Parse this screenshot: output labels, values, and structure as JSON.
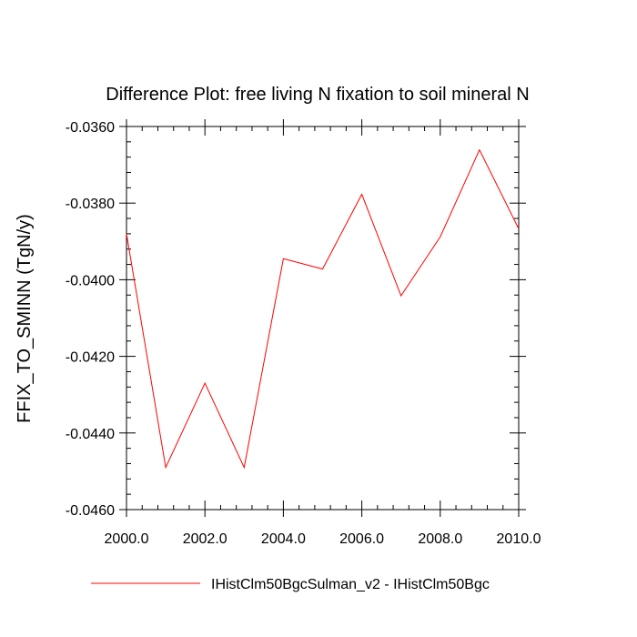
{
  "chart_data": {
    "type": "line",
    "title": "Difference Plot: free living N fixation to soil mineral N",
    "xlabel": "",
    "ylabel": "FFIX_TO_SMINN  (TgN/y)",
    "xlim": [
      2000,
      2010
    ],
    "ylim": [
      -0.046,
      -0.036
    ],
    "x_ticks": [
      "2000.0",
      "2002.0",
      "2004.0",
      "2006.0",
      "2008.0",
      "2010.0"
    ],
    "y_ticks": [
      "-0.0360",
      "-0.0380",
      "-0.0400",
      "-0.0420",
      "-0.0440",
      "-0.0460"
    ],
    "grid": false,
    "legend_position": "bottom",
    "x": [
      2000,
      2001,
      2002,
      2003,
      2004,
      2005,
      2006,
      2007,
      2008,
      2009,
      2010
    ],
    "series": [
      {
        "name": "IHistClm50BgcSulman_v2 - IHistClm50Bgc",
        "color": "#ff0000",
        "values": [
          -0.0388,
          -0.0449,
          -0.0427,
          -0.0449,
          -0.03945,
          -0.03972,
          -0.03777,
          -0.04042,
          -0.03888,
          -0.03661,
          -0.03867
        ]
      }
    ]
  }
}
